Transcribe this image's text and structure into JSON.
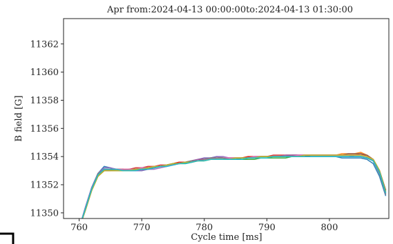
{
  "chart_data": {
    "type": "line",
    "title": "Apr from:2024-04-13 00:00:00to:2024-04-13 01:30:00",
    "xlabel": "Cycle time [ms]",
    "ylabel": "B field [G]",
    "xlim": [
      757.5,
      809.5
    ],
    "ylim": [
      11349.6,
      11363.8
    ],
    "xticks": [
      760,
      770,
      780,
      790,
      800
    ],
    "yticks": [
      11350,
      11352,
      11354,
      11356,
      11358,
      11360,
      11362
    ],
    "grid": false,
    "legend": "none",
    "x": [
      760,
      761,
      762,
      763,
      764,
      765,
      766,
      767,
      768,
      769,
      770,
      771,
      772,
      773,
      774,
      775,
      776,
      777,
      778,
      779,
      780,
      781,
      782,
      783,
      784,
      785,
      786,
      787,
      788,
      789,
      790,
      791,
      792,
      793,
      794,
      795,
      796,
      797,
      798,
      799,
      800,
      801,
      802,
      803,
      804,
      805,
      806,
      807,
      808,
      809
    ],
    "series": [
      {
        "color": "#1f77b4",
        "values": [
          11348.9,
          11350.4,
          11351.8,
          11352.8,
          11353.3,
          11353.2,
          11353.0,
          11353.1,
          11353.0,
          11353.0,
          11353.0,
          11353.1,
          11353.2,
          11353.3,
          11353.4,
          11353.5,
          11353.5,
          11353.6,
          11353.7,
          11353.8,
          11353.9,
          11353.9,
          11354.0,
          11353.9,
          11353.8,
          11353.8,
          11353.9,
          11353.9,
          11354.0,
          11354.0,
          11354.0,
          11354.0,
          11354.0,
          11354.0,
          11354.1,
          11354.1,
          11354.1,
          11354.0,
          11354.0,
          11354.0,
          11354.0,
          11354.0,
          11353.9,
          11353.9,
          11353.9,
          11353.9,
          11353.8,
          11353.5,
          11352.6,
          11351.2
        ]
      },
      {
        "color": "#ff7f0e",
        "values": [
          11348.9,
          11350.2,
          11351.6,
          11352.6,
          11353.0,
          11353.0,
          11353.0,
          11353.0,
          11353.1,
          11353.1,
          11353.2,
          11353.2,
          11353.3,
          11353.3,
          11353.4,
          11353.5,
          11353.6,
          11353.6,
          11353.7,
          11353.7,
          11353.8,
          11353.8,
          11353.9,
          11353.9,
          11353.9,
          11353.9,
          11353.9,
          11354.0,
          11354.0,
          11354.0,
          11354.0,
          11354.0,
          11354.0,
          11354.1,
          11354.1,
          11354.1,
          11354.1,
          11354.1,
          11354.1,
          11354.1,
          11354.1,
          11354.1,
          11354.2,
          11354.2,
          11354.2,
          11354.3,
          11354.1,
          11353.8,
          11353.0,
          11351.6
        ]
      },
      {
        "color": "#2ca02c",
        "values": [
          11348.9,
          11350.3,
          11351.7,
          11352.7,
          11353.1,
          11353.1,
          11353.1,
          11353.1,
          11353.0,
          11353.0,
          11353.1,
          11353.1,
          11353.2,
          11353.3,
          11353.4,
          11353.4,
          11353.5,
          11353.5,
          11353.6,
          11353.7,
          11353.7,
          11353.8,
          11353.8,
          11353.8,
          11353.8,
          11353.8,
          11353.8,
          11353.8,
          11353.8,
          11353.9,
          11353.9,
          11353.9,
          11353.9,
          11353.9,
          11354.0,
          11354.0,
          11354.0,
          11354.0,
          11354.0,
          11354.0,
          11354.0,
          11354.0,
          11354.0,
          11354.0,
          11354.0,
          11354.0,
          11353.9,
          11353.7,
          11352.9,
          11351.4
        ]
      },
      {
        "color": "#d62728",
        "values": [
          11348.9,
          11350.3,
          11351.7,
          11352.7,
          11353.0,
          11353.0,
          11353.1,
          11353.1,
          11353.1,
          11353.2,
          11353.2,
          11353.3,
          11353.3,
          11353.4,
          11353.4,
          11353.5,
          11353.6,
          11353.6,
          11353.7,
          11353.8,
          11353.8,
          11353.9,
          11353.9,
          11353.9,
          11353.9,
          11353.9,
          11353.9,
          11354.0,
          11354.0,
          11354.0,
          11354.0,
          11354.1,
          11354.1,
          11354.1,
          11354.1,
          11354.1,
          11354.1,
          11354.1,
          11354.1,
          11354.1,
          11354.1,
          11354.1,
          11354.1,
          11354.1,
          11354.1,
          11354.2,
          11354.0,
          11353.8,
          11353.0,
          11351.5
        ]
      },
      {
        "color": "#9467bd",
        "values": [
          11348.9,
          11350.4,
          11351.8,
          11352.8,
          11353.2,
          11353.2,
          11353.1,
          11353.0,
          11353.0,
          11353.0,
          11353.0,
          11353.1,
          11353.1,
          11353.2,
          11353.3,
          11353.4,
          11353.5,
          11353.6,
          11353.7,
          11353.8,
          11353.9,
          11353.9,
          11354.0,
          11354.0,
          11353.9,
          11353.9,
          11353.9,
          11353.9,
          11354.0,
          11354.0,
          11354.0,
          11354.0,
          11354.0,
          11354.1,
          11354.1,
          11354.1,
          11354.1,
          11354.1,
          11354.1,
          11354.1,
          11354.1,
          11354.1,
          11354.1,
          11354.1,
          11354.0,
          11354.0,
          11353.9,
          11353.7,
          11352.8,
          11351.3
        ]
      },
      {
        "color": "#8c564b",
        "values": [
          11348.9,
          11350.2,
          11351.6,
          11352.6,
          11353.0,
          11353.0,
          11353.0,
          11353.0,
          11353.1,
          11353.1,
          11353.2,
          11353.2,
          11353.3,
          11353.3,
          11353.4,
          11353.5,
          11353.5,
          11353.6,
          11353.6,
          11353.7,
          11353.8,
          11353.8,
          11353.8,
          11353.8,
          11353.9,
          11353.9,
          11353.9,
          11353.9,
          11353.9,
          11354.0,
          11354.0,
          11354.0,
          11354.0,
          11354.0,
          11354.0,
          11354.0,
          11354.0,
          11354.1,
          11354.1,
          11354.1,
          11354.1,
          11354.1,
          11354.1,
          11354.2,
          11354.2,
          11354.2,
          11354.1,
          11353.8,
          11353.0,
          11351.6
        ]
      },
      {
        "color": "#e377c2",
        "values": [
          11348.9,
          11350.3,
          11351.7,
          11352.7,
          11353.1,
          11353.1,
          11353.1,
          11353.1,
          11353.1,
          11353.1,
          11353.2,
          11353.2,
          11353.3,
          11353.3,
          11353.4,
          11353.4,
          11353.5,
          11353.6,
          11353.6,
          11353.7,
          11353.8,
          11353.8,
          11353.9,
          11353.9,
          11353.9,
          11353.9,
          11353.9,
          11353.9,
          11354.0,
          11354.0,
          11354.0,
          11354.0,
          11354.0,
          11354.0,
          11354.0,
          11354.1,
          11354.1,
          11354.1,
          11354.1,
          11354.1,
          11354.1,
          11354.1,
          11354.1,
          11354.1,
          11354.1,
          11354.1,
          11354.0,
          11353.8,
          11352.9,
          11351.4
        ]
      },
      {
        "color": "#7f7f7f",
        "values": [
          11348.9,
          11350.3,
          11351.7,
          11352.8,
          11353.1,
          11353.1,
          11353.0,
          11353.0,
          11353.0,
          11353.1,
          11353.1,
          11353.2,
          11353.2,
          11353.3,
          11353.4,
          11353.5,
          11353.5,
          11353.6,
          11353.7,
          11353.7,
          11353.8,
          11353.9,
          11353.9,
          11353.9,
          11353.8,
          11353.8,
          11353.9,
          11353.9,
          11353.9,
          11354.0,
          11354.0,
          11354.0,
          11354.0,
          11354.0,
          11354.0,
          11354.0,
          11354.0,
          11354.0,
          11354.0,
          11354.0,
          11354.0,
          11354.0,
          11354.0,
          11354.0,
          11354.0,
          11354.0,
          11353.9,
          11353.7,
          11352.8,
          11351.3
        ]
      },
      {
        "color": "#bcbd22",
        "values": [
          11348.9,
          11350.2,
          11351.6,
          11352.6,
          11353.0,
          11353.0,
          11353.0,
          11353.0,
          11353.0,
          11353.1,
          11353.1,
          11353.2,
          11353.3,
          11353.3,
          11353.4,
          11353.5,
          11353.5,
          11353.6,
          11353.6,
          11353.7,
          11353.7,
          11353.8,
          11353.8,
          11353.8,
          11353.8,
          11353.9,
          11353.9,
          11353.9,
          11353.9,
          11354.0,
          11354.0,
          11354.0,
          11354.0,
          11354.0,
          11354.0,
          11354.0,
          11354.1,
          11354.1,
          11354.1,
          11354.1,
          11354.1,
          11354.1,
          11354.1,
          11354.1,
          11354.1,
          11354.1,
          11354.0,
          11353.8,
          11353.0,
          11351.5
        ]
      },
      {
        "color": "#17becf",
        "values": [
          11348.9,
          11350.3,
          11351.7,
          11352.7,
          11353.1,
          11353.1,
          11353.1,
          11353.0,
          11353.0,
          11353.0,
          11353.1,
          11353.1,
          11353.2,
          11353.3,
          11353.3,
          11353.4,
          11353.5,
          11353.5,
          11353.6,
          11353.7,
          11353.7,
          11353.8,
          11353.8,
          11353.8,
          11353.8,
          11353.8,
          11353.8,
          11353.9,
          11353.9,
          11353.9,
          11353.9,
          11354.0,
          11354.0,
          11354.0,
          11354.0,
          11354.0,
          11354.0,
          11354.0,
          11354.0,
          11354.0,
          11354.0,
          11354.0,
          11354.0,
          11354.0,
          11354.0,
          11354.0,
          11353.9,
          11353.7,
          11352.9,
          11351.4
        ]
      }
    ]
  }
}
